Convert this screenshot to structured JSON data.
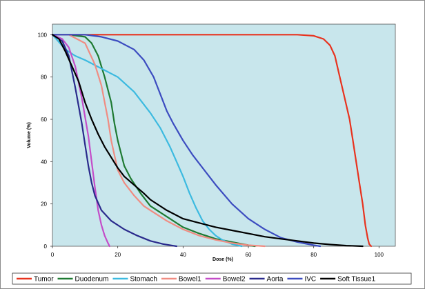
{
  "chart_data": {
    "type": "line",
    "title": "",
    "xlabel": "Dose (%)",
    "ylabel": "Volume (%)",
    "xlim": [
      0,
      105
    ],
    "ylim": [
      0,
      105
    ],
    "x_ticks": [
      0,
      20,
      40,
      60,
      80,
      100
    ],
    "y_ticks": [
      0,
      20,
      40,
      60,
      80,
      100
    ],
    "grid": false,
    "plot_background": "#c8e6ec",
    "legend_position": "bottom",
    "series": [
      {
        "name": "Tumor",
        "color": "#e8321e",
        "points": [
          [
            0,
            100
          ],
          [
            50,
            100
          ],
          [
            75,
            100
          ],
          [
            80,
            99.5
          ],
          [
            83,
            98
          ],
          [
            85,
            95
          ],
          [
            86.5,
            90
          ],
          [
            88,
            80
          ],
          [
            89.5,
            70
          ],
          [
            91,
            60
          ],
          [
            92,
            50
          ],
          [
            93,
            40
          ],
          [
            94,
            30
          ],
          [
            95,
            20
          ],
          [
            95.8,
            10
          ],
          [
            96.5,
            4
          ],
          [
            97,
            1
          ],
          [
            97.6,
            0
          ]
        ]
      },
      {
        "name": "Duodenum",
        "color": "#1e7a32",
        "points": [
          [
            0,
            100
          ],
          [
            5,
            100
          ],
          [
            10,
            99
          ],
          [
            12,
            96
          ],
          [
            14,
            90
          ],
          [
            16,
            80
          ],
          [
            18,
            68
          ],
          [
            19,
            58
          ],
          [
            20,
            50
          ],
          [
            21,
            44
          ],
          [
            22,
            38
          ],
          [
            24,
            32
          ],
          [
            27,
            25
          ],
          [
            30,
            19
          ],
          [
            35,
            14
          ],
          [
            40,
            9
          ],
          [
            45,
            6
          ],
          [
            50,
            3.5
          ],
          [
            55,
            2
          ],
          [
            60,
            0.5
          ],
          [
            62,
            0
          ]
        ]
      },
      {
        "name": "Stomach",
        "color": "#3cbae0",
        "points": [
          [
            0,
            100
          ],
          [
            4,
            93
          ],
          [
            7,
            90
          ],
          [
            10,
            88
          ],
          [
            15,
            84
          ],
          [
            20,
            80
          ],
          [
            25,
            73
          ],
          [
            30,
            63
          ],
          [
            33,
            56
          ],
          [
            36,
            47
          ],
          [
            38,
            40
          ],
          [
            40,
            33
          ],
          [
            42,
            25
          ],
          [
            44,
            18
          ],
          [
            46,
            12
          ],
          [
            48,
            8
          ],
          [
            50,
            5
          ],
          [
            52,
            3
          ],
          [
            55,
            1
          ],
          [
            58,
            0
          ]
        ]
      },
      {
        "name": "Bowel1",
        "color": "#f08c82",
        "points": [
          [
            0,
            100
          ],
          [
            5,
            100
          ],
          [
            10,
            96
          ],
          [
            13,
            86
          ],
          [
            15,
            76
          ],
          [
            17,
            60
          ],
          [
            18,
            50
          ],
          [
            19,
            43
          ],
          [
            20,
            36
          ],
          [
            22,
            30
          ],
          [
            25,
            24
          ],
          [
            28,
            19
          ],
          [
            30,
            17
          ],
          [
            35,
            12
          ],
          [
            40,
            8
          ],
          [
            45,
            5
          ],
          [
            50,
            3
          ],
          [
            55,
            1.5
          ],
          [
            60,
            0.5
          ],
          [
            65,
            0
          ]
        ]
      },
      {
        "name": "Bowel2",
        "color": "#c44cc8",
        "points": [
          [
            0,
            100
          ],
          [
            3,
            98
          ],
          [
            5,
            94
          ],
          [
            7,
            85
          ],
          [
            9,
            70
          ],
          [
            11,
            52
          ],
          [
            12,
            40
          ],
          [
            13,
            28
          ],
          [
            14,
            17
          ],
          [
            15,
            10
          ],
          [
            16,
            5
          ],
          [
            17,
            1.5
          ],
          [
            17.5,
            0
          ]
        ]
      },
      {
        "name": "Aorta",
        "color": "#2a2a8c",
        "points": [
          [
            0,
            100
          ],
          [
            3,
            97
          ],
          [
            5,
            90
          ],
          [
            7,
            75
          ],
          [
            9,
            58
          ],
          [
            10,
            48
          ],
          [
            11,
            38
          ],
          [
            12,
            30
          ],
          [
            13,
            24
          ],
          [
            15,
            17
          ],
          [
            18,
            12
          ],
          [
            22,
            8
          ],
          [
            26,
            5
          ],
          [
            30,
            2.5
          ],
          [
            34,
            1
          ],
          [
            38,
            0
          ]
        ]
      },
      {
        "name": "IVC",
        "color": "#3c4cc0",
        "points": [
          [
            0,
            100
          ],
          [
            5,
            100
          ],
          [
            10,
            100
          ],
          [
            15,
            99
          ],
          [
            20,
            97
          ],
          [
            25,
            93
          ],
          [
            28,
            88
          ],
          [
            31,
            80
          ],
          [
            33,
            72
          ],
          [
            35,
            64
          ],
          [
            37,
            58
          ],
          [
            40,
            50
          ],
          [
            43,
            43
          ],
          [
            46,
            37
          ],
          [
            50,
            29
          ],
          [
            55,
            20
          ],
          [
            60,
            13
          ],
          [
            65,
            8
          ],
          [
            70,
            4
          ],
          [
            75,
            2
          ],
          [
            80,
            0.5
          ],
          [
            82,
            0
          ]
        ]
      },
      {
        "name": "Soft Tissue1",
        "color": "#000000",
        "points": [
          [
            0,
            100
          ],
          [
            2,
            98
          ],
          [
            4,
            92
          ],
          [
            6,
            85
          ],
          [
            8,
            78
          ],
          [
            10,
            68
          ],
          [
            12,
            60
          ],
          [
            14,
            53
          ],
          [
            16,
            47
          ],
          [
            18,
            42
          ],
          [
            20,
            37
          ],
          [
            22,
            33
          ],
          [
            25,
            29
          ],
          [
            28,
            25
          ],
          [
            30,
            22
          ],
          [
            35,
            17
          ],
          [
            40,
            13
          ],
          [
            45,
            11
          ],
          [
            50,
            9
          ],
          [
            55,
            7.5
          ],
          [
            60,
            6
          ],
          [
            65,
            4.5
          ],
          [
            70,
            3.5
          ],
          [
            75,
            2.5
          ],
          [
            80,
            1.5
          ],
          [
            85,
            0.8
          ],
          [
            90,
            0.3
          ],
          [
            95,
            0
          ]
        ]
      }
    ]
  }
}
